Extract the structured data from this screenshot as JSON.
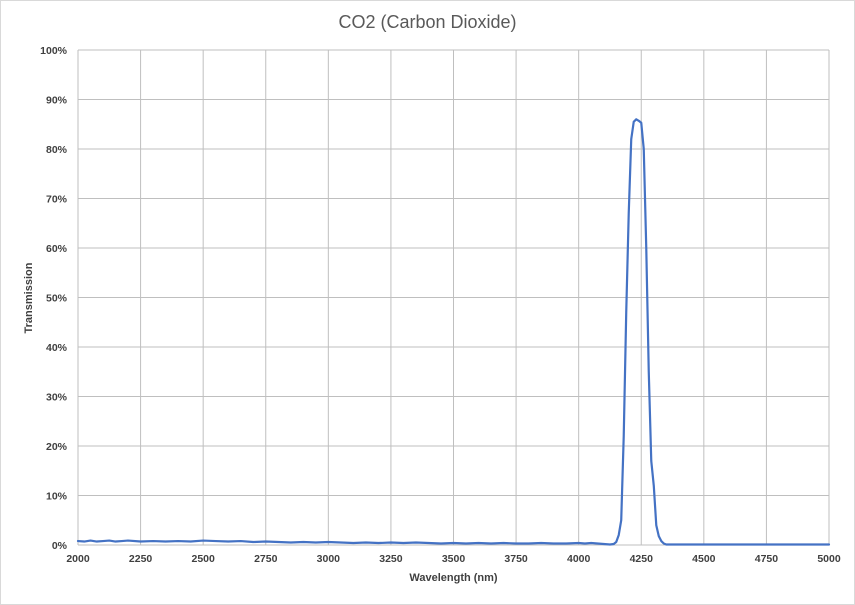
{
  "chart_data": {
    "type": "line",
    "title": "CO2 (Carbon Dioxide)",
    "xlabel": "Wavelength (nm)",
    "ylabel": "Transmission",
    "xlim": [
      2000,
      5000
    ],
    "ylim": [
      0,
      100
    ],
    "x_ticks": [
      "2000",
      "2250",
      "2500",
      "2750",
      "3000",
      "3250",
      "3500",
      "3750",
      "4000",
      "4250",
      "4500",
      "4750",
      "5000"
    ],
    "y_ticks": [
      "0%",
      "10%",
      "20%",
      "30%",
      "40%",
      "50%",
      "60%",
      "70%",
      "80%",
      "90%",
      "100%"
    ],
    "grid": true,
    "legend": "none",
    "line_color": "#4472c4",
    "series": [
      {
        "x": [
          2000,
          2025,
          2050,
          2075,
          2100,
          2125,
          2150,
          2175,
          2200,
          2250,
          2300,
          2350,
          2400,
          2450,
          2500,
          2550,
          2600,
          2650,
          2700,
          2750,
          2800,
          2850,
          2900,
          2950,
          3000,
          3050,
          3100,
          3150,
          3200,
          3250,
          3300,
          3350,
          3400,
          3450,
          3500,
          3550,
          3600,
          3650,
          3700,
          3750,
          3800,
          3850,
          3900,
          3950,
          4000,
          4025,
          4050,
          4075,
          4100,
          4125,
          4140,
          4150,
          4160,
          4170,
          4180,
          4190,
          4200,
          4210,
          4220,
          4230,
          4240,
          4250,
          4260,
          4270,
          4280,
          4290,
          4300,
          4310,
          4320,
          4330,
          4340,
          4350,
          4360,
          4370,
          4380,
          4400,
          4450,
          4500,
          4550,
          4600,
          4650,
          4700,
          4750,
          4800,
          4850,
          4900,
          4950,
          5000
        ],
        "y": [
          0.8,
          0.7,
          0.9,
          0.7,
          0.8,
          0.9,
          0.7,
          0.8,
          0.9,
          0.7,
          0.8,
          0.7,
          0.8,
          0.7,
          0.9,
          0.8,
          0.7,
          0.8,
          0.6,
          0.7,
          0.6,
          0.5,
          0.6,
          0.5,
          0.6,
          0.5,
          0.4,
          0.5,
          0.4,
          0.5,
          0.4,
          0.5,
          0.4,
          0.3,
          0.4,
          0.3,
          0.4,
          0.3,
          0.4,
          0.3,
          0.3,
          0.4,
          0.3,
          0.3,
          0.4,
          0.3,
          0.4,
          0.3,
          0.2,
          0.1,
          0.2,
          0.6,
          2.0,
          5.0,
          22.0,
          47.0,
          67.0,
          82.0,
          85.5,
          86.0,
          85.7,
          85.3,
          80.0,
          60.0,
          35.0,
          17.0,
          12.0,
          4.0,
          1.8,
          0.8,
          0.3,
          0.1,
          0.1,
          0.1,
          0.1,
          0.1,
          0.1,
          0.1,
          0.1,
          0.1,
          0.1,
          0.1,
          0.1,
          0.1,
          0.1,
          0.1,
          0.1,
          0.1
        ]
      }
    ]
  }
}
